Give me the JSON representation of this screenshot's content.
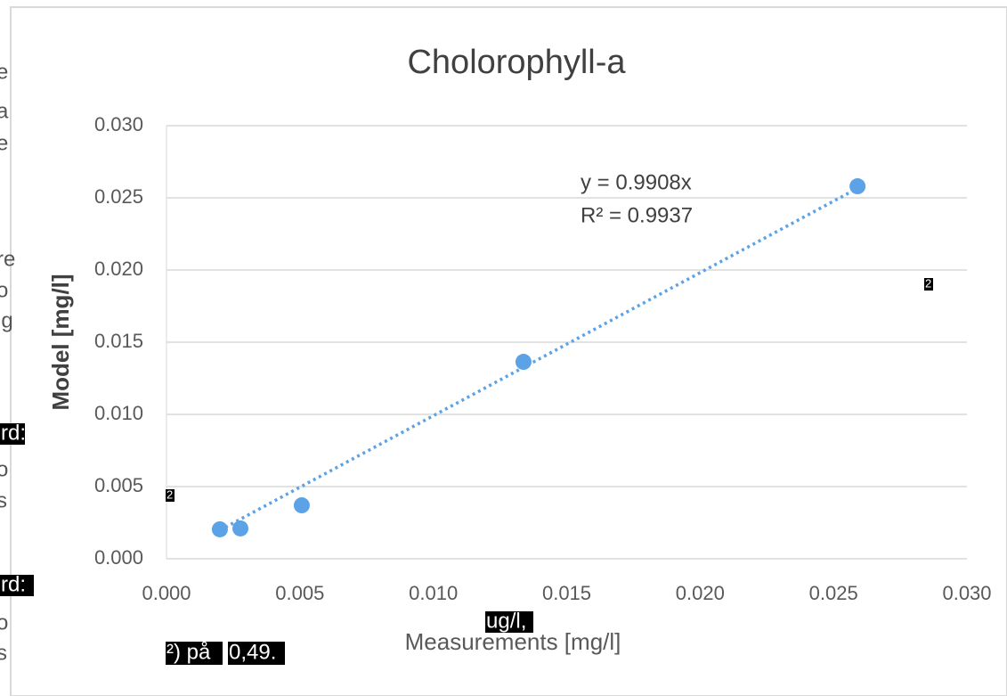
{
  "chart_data": {
    "type": "scatter",
    "title": "Cholorophyll-a",
    "x_label": "Measurements [mg/l]",
    "y_label": "Model [mg/l]",
    "x": [
      0.002,
      0.00277,
      0.00507,
      0.01338,
      0.0259
    ],
    "values": [
      0.00204,
      0.0021,
      0.0037,
      0.01364,
      0.0258
    ],
    "color": "#5ba3e6",
    "xlim": [
      0,
      0.03
    ],
    "ylim": [
      0,
      0.03
    ],
    "xticks": [
      {
        "value": 0,
        "label": "0.000"
      },
      0.005,
      {
        "value": 0.01,
        "label": "0.010"
      },
      0.015,
      {
        "value": 0.02,
        "label": "0.020"
      },
      0.025,
      {
        "value": 0.03,
        "label": "0.030"
      }
    ],
    "yticks": [
      {
        "value": 0,
        "label": "0.000"
      },
      0.005,
      {
        "value": 0.01,
        "label": "0.010"
      },
      0.015,
      {
        "value": 0.02,
        "label": "0.020"
      },
      0.025,
      {
        "value": 0.03,
        "label": "0.030"
      }
    ],
    "grid": true,
    "trendline": {
      "slope": 0.9908
    },
    "annotations": [
      "y = 0.9908x",
      "R² = 0.9937"
    ]
  },
  "fragments": [
    "e",
    "a",
    "e",
    "re",
    "o",
    "ig",
    "o",
    "s",
    "o",
    "s"
  ],
  "highlights": [
    "rd:",
    "rd:",
    "2",
    "2",
    "ug/l,",
    "²) på",
    "0,49."
  ]
}
